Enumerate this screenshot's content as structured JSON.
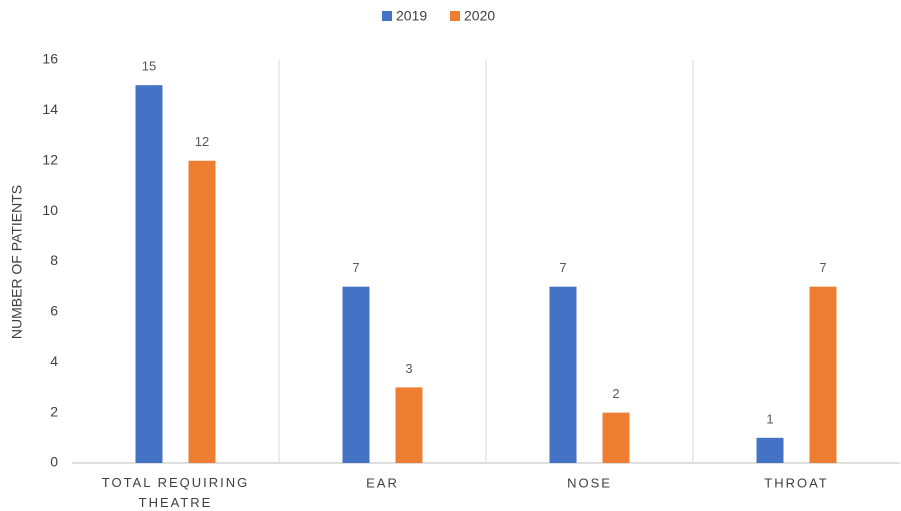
{
  "chart_data": {
    "type": "bar",
    "y_label": "NUMBER OF PATIENTS",
    "categories": [
      "TOTAL REQUIRING THEATRE",
      "EAR",
      "NOSE",
      "THROAT"
    ],
    "series": [
      {
        "name": "2019",
        "color": "#4472c4",
        "values": [
          15,
          7,
          7,
          1
        ]
      },
      {
        "name": "2020",
        "color": "#ed7d31",
        "values": [
          12,
          3,
          2,
          7
        ]
      }
    ],
    "ylim": [
      0,
      16
    ],
    "yticks": [
      0,
      2,
      4,
      6,
      8,
      10,
      12,
      14,
      16
    ],
    "legend": "top",
    "grid": false,
    "category_separators": true
  }
}
